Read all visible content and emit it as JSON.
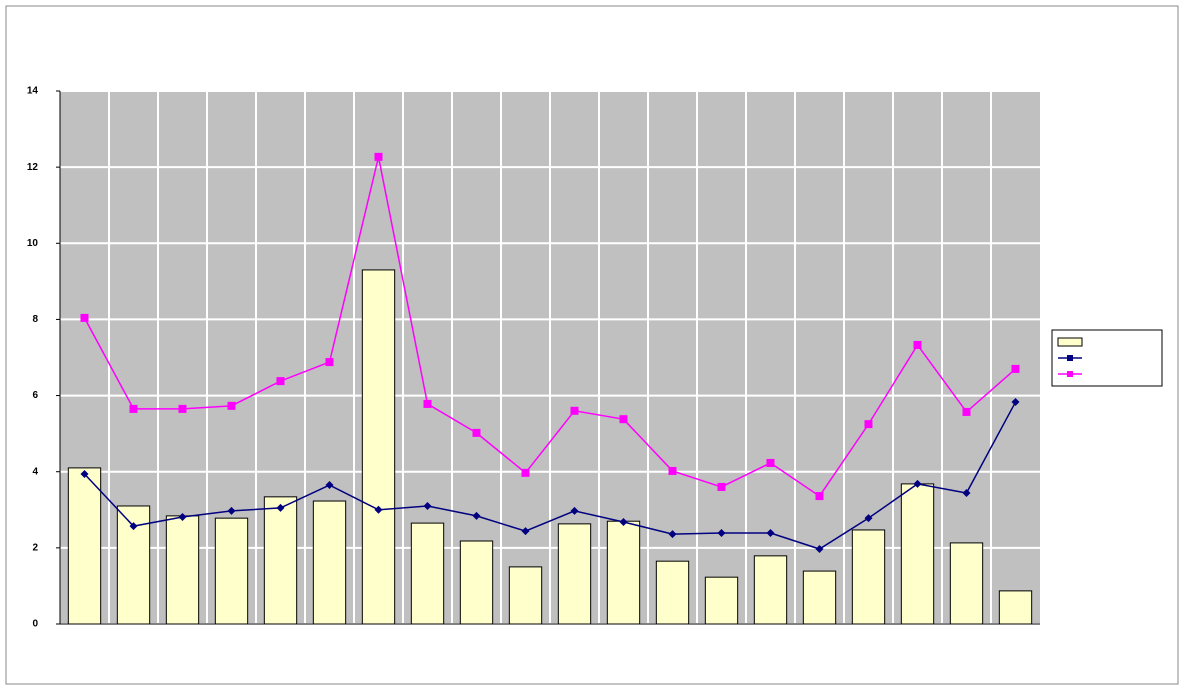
{
  "chart_data": {
    "type": "bar-line",
    "categories": [
      null,
      null,
      null,
      null,
      null,
      null,
      null,
      null,
      null,
      null,
      null,
      null,
      null,
      null,
      null,
      null,
      null,
      null,
      null,
      null
    ],
    "series": [
      {
        "name": null,
        "kind": "bar",
        "color": "#ffffcc",
        "values": [
          4.1,
          3.1,
          2.84,
          2.78,
          3.34,
          3.23,
          9.3,
          2.65,
          2.18,
          1.5,
          2.63,
          2.7,
          1.65,
          1.23,
          1.79,
          1.39,
          2.47,
          3.68,
          2.13,
          0.87
        ]
      },
      {
        "name": null,
        "kind": "line",
        "color": "#000080",
        "values": [
          3.94,
          2.57,
          2.81,
          2.97,
          3.05,
          3.65,
          3.0,
          3.1,
          2.84,
          2.44,
          2.97,
          2.68,
          2.36,
          2.39,
          2.39,
          1.97,
          2.78,
          3.68,
          3.44,
          5.83
        ]
      },
      {
        "name": null,
        "kind": "line",
        "color": "#ff00ff",
        "values": [
          8.04,
          5.65,
          5.65,
          5.73,
          6.38,
          6.88,
          12.27,
          5.78,
          5.02,
          3.97,
          5.6,
          5.38,
          4.02,
          3.6,
          4.23,
          3.36,
          5.25,
          7.33,
          5.57,
          6.7
        ]
      }
    ],
    "ylim": [
      0,
      14
    ],
    "yticks": [
      0,
      2,
      4,
      6,
      8,
      10,
      12,
      14
    ],
    "grid": true
  }
}
